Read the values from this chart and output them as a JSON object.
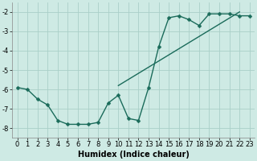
{
  "xlabel": "Humidex (Indice chaleur)",
  "xlim": [
    -0.5,
    23.5
  ],
  "ylim": [
    -8.5,
    -1.5
  ],
  "yticks": [
    -8,
    -7,
    -6,
    -5,
    -4,
    -3,
    -2
  ],
  "xticks": [
    0,
    1,
    2,
    3,
    4,
    5,
    6,
    7,
    8,
    9,
    10,
    11,
    12,
    13,
    14,
    15,
    16,
    17,
    18,
    19,
    20,
    21,
    22,
    23
  ],
  "background_color": "#ceeae4",
  "grid_color": "#aacfc8",
  "line_color": "#1a6b5a",
  "line1_x": [
    0,
    1,
    2,
    3,
    4,
    5,
    6,
    7,
    8,
    9,
    10,
    11,
    12,
    13,
    14,
    15,
    16,
    17,
    18,
    19,
    20,
    21,
    22,
    23
  ],
  "line1_y": [
    -5.9,
    -6.0,
    -6.5,
    -6.8,
    -7.6,
    -7.8,
    -7.8,
    -7.8,
    -7.7,
    -6.7,
    -6.3,
    -7.5,
    -7.6,
    -5.9,
    -3.8,
    -2.3,
    -2.2,
    -2.4,
    -2.7,
    -2.1,
    -2.1,
    -2.1,
    -2.2,
    -2.2
  ],
  "line2_x": [
    10,
    22
  ],
  "line2_y": [
    -5.8,
    -2.0
  ],
  "font_size_label": 7,
  "font_size_tick": 6,
  "marker_size": 2.5,
  "linewidth": 1.0
}
